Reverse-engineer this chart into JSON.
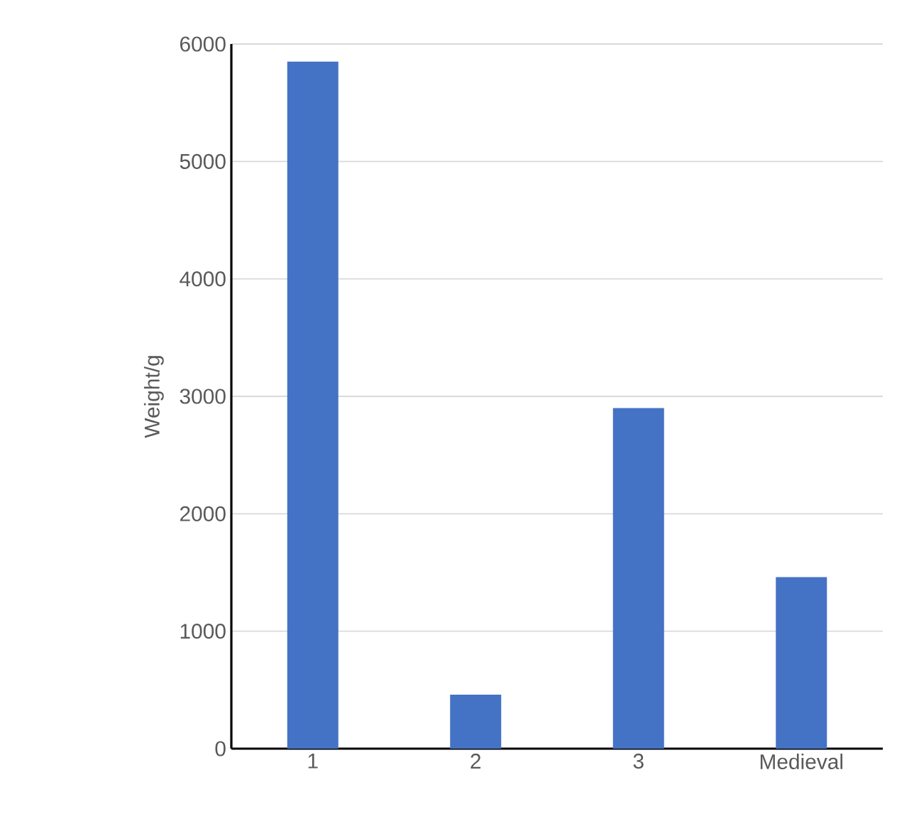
{
  "chart_data": {
    "type": "bar",
    "ylabel": "Weight/g",
    "categories": [
      "1",
      "2",
      "3",
      "Medieval"
    ],
    "values": [
      5850,
      460,
      2900,
      1460
    ],
    "color": "#4472c4",
    "ylim": [
      0,
      6000
    ],
    "yticks": [
      0,
      1000,
      2000,
      3000,
      4000,
      5000,
      6000
    ],
    "grid": "y"
  }
}
